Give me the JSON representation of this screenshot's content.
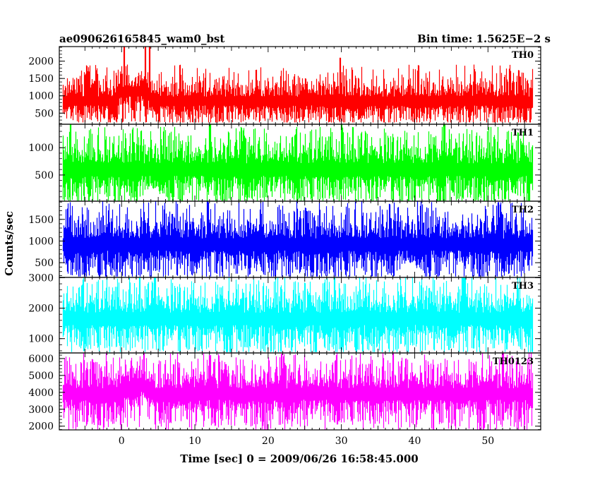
{
  "chart_data": {
    "type": "line",
    "title": "ae090626165845_wam0_bst",
    "subtitle": "Bin time: 1.5625E−2 s",
    "xlabel": "Time [sec] 0 = 2009/06/26 16:58:45.000",
    "ylabel": "Counts/sec",
    "xlim": [
      -8.5,
      57.2
    ],
    "x_ticks": [
      0,
      10,
      20,
      30,
      40,
      50
    ],
    "x_range": [
      -8.0,
      56.0
    ],
    "bin_time": 0.015625,
    "grid": false,
    "panels": [
      {
        "name": "TH0",
        "color": "#ff0000",
        "ylim": [
          180,
          2420
        ],
        "y_ticks": [
          500,
          1000,
          1500,
          2000
        ],
        "baseline": 850,
        "noise_sigma": 210,
        "envelope_min": 230,
        "envelope_max": 1900,
        "bursts": [
          {
            "x": [
              -0.5,
              1.5
            ],
            "extra": 350
          },
          {
            "x": [
              1.5,
              4.0
            ],
            "extra": 300
          }
        ],
        "spikes": [
          {
            "x": 0.3,
            "value": 2420
          },
          {
            "x": 3.2,
            "value": 2420
          },
          {
            "x": 3.8,
            "value": 2420
          },
          {
            "x": 29.8,
            "value": 2100
          }
        ]
      },
      {
        "name": "TH1",
        "color": "#00ff00",
        "ylim": [
          20,
          1430
        ],
        "y_ticks": [
          500,
          1000
        ],
        "baseline": 600,
        "noise_sigma": 190,
        "envelope_min": 30,
        "envelope_max": 1380,
        "bursts": [],
        "spikes": [
          {
            "x": -7.0,
            "value": 1430
          },
          {
            "x": 12.0,
            "value": 1430
          },
          {
            "x": 30.0,
            "value": 1430
          },
          {
            "x": 44.0,
            "value": 1430
          }
        ]
      },
      {
        "name": "TH2",
        "color": "#0000ff",
        "ylim": [
          160,
          1920
        ],
        "y_ticks": [
          500,
          1000,
          1500
        ],
        "baseline": 920,
        "noise_sigma": 230,
        "envelope_min": 180,
        "envelope_max": 1920,
        "bursts": [],
        "spikes": []
      },
      {
        "name": "TH3",
        "color": "#00ffff",
        "ylim": [
          530,
          3010
        ],
        "y_ticks": [
          1000,
          2000,
          3000
        ],
        "baseline": 1650,
        "noise_sigma": 330,
        "envelope_min": 560,
        "envelope_max": 3010,
        "bursts": [],
        "spikes": [
          {
            "x": 4.5,
            "value": 3010
          },
          {
            "x": 29.0,
            "value": 3010
          },
          {
            "x": 46.5,
            "value": 3010
          }
        ]
      },
      {
        "name": "TH0123",
        "color": "#ff00ff",
        "ylim": [
          1780,
          6330
        ],
        "y_ticks": [
          2000,
          3000,
          4000,
          5000,
          6000
        ],
        "baseline": 3900,
        "noise_sigma": 560,
        "envelope_min": 1800,
        "envelope_max": 6330,
        "bursts": [
          {
            "x": [
              0.0,
              4.5
            ],
            "extra": 500
          }
        ],
        "spikes": [
          {
            "x": 3.0,
            "value": 6330
          },
          {
            "x": 12.0,
            "value": 6200
          },
          {
            "x": 52.0,
            "value": 6330
          }
        ]
      }
    ]
  }
}
